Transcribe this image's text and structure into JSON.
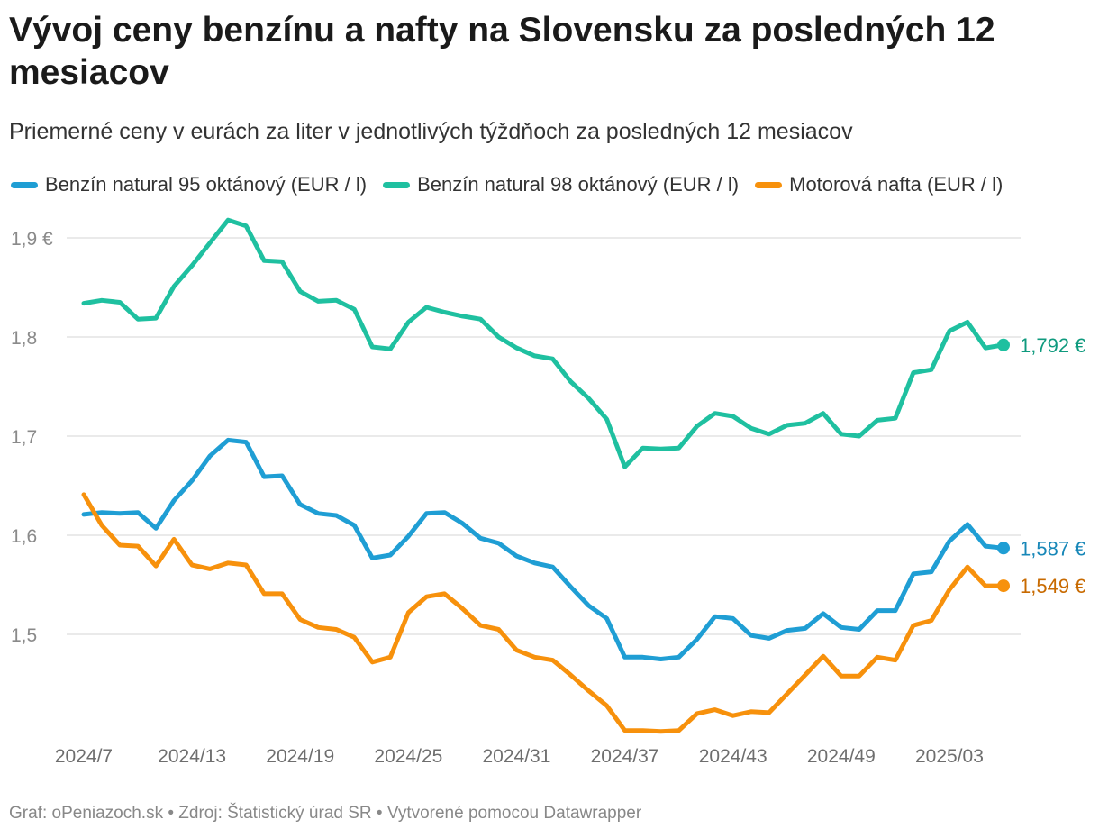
{
  "header": {
    "title": "Vývoj ceny benzínu a nafty na Slovensku za posledných 12 mesiacov",
    "subtitle": "Priemerné ceny v eurách za liter v jednotlivých týždňoch za posledných 12 mesiacov"
  },
  "legend": {
    "s0": "Benzín natural 95 oktánový (EUR / l)",
    "s1": "Benzín natural 98 oktánový (EUR / l)",
    "s2": "Motorová nafta (EUR / l)"
  },
  "footer": {
    "text": "Graf: oPeniazoch.sk • Zdroj: Štatistický úrad SR • Vytvorené pomocou Datawrapper"
  },
  "chart_data": {
    "type": "line",
    "title": "Vývoj ceny benzínu a nafty na Slovensku za posledných 12 mesiacov",
    "subtitle": "Priemerné ceny v eurách za liter v jednotlivých týždňoch za posledných 12 mesiacov",
    "x_tick_labels": [
      "2024/7",
      "2024/13",
      "2024/19",
      "2024/25",
      "2024/31",
      "2024/37",
      "2024/43",
      "2024/49",
      "2025/03"
    ],
    "y_ticks": [
      1.5,
      1.6,
      1.7,
      1.8,
      1.9
    ],
    "y_tick_labels": [
      "1,5",
      "1,6",
      "1,7",
      "1,8",
      "1,9 €"
    ],
    "ylim": [
      1.4,
      1.92
    ],
    "grid": true,
    "legend_position": "top",
    "series": [
      {
        "name": "Benzín natural 95 oktánový (EUR / l)",
        "color": "#1f9ed4",
        "label_color": "#1787b8",
        "end_label": "1,587 €",
        "values": [
          1.621,
          1.623,
          1.622,
          1.623,
          1.607,
          1.635,
          1.655,
          1.68,
          1.696,
          1.694,
          1.659,
          1.66,
          1.631,
          1.622,
          1.62,
          1.61,
          1.577,
          1.58,
          1.599,
          1.622,
          1.623,
          1.612,
          1.597,
          1.592,
          1.579,
          1.572,
          1.568,
          1.548,
          1.529,
          1.516,
          1.477,
          1.477,
          1.475,
          1.477,
          1.495,
          1.518,
          1.516,
          1.499,
          1.496,
          1.504,
          1.506,
          1.521,
          1.507,
          1.505,
          1.524,
          1.524,
          1.561,
          1.563,
          1.594,
          1.611,
          1.589,
          1.587
        ]
      },
      {
        "name": "Benzín natural 98 oktánový (EUR / l)",
        "color": "#1fc0a0",
        "label_color": "#0f9a7e",
        "end_label": "1,792 €",
        "values": [
          1.834,
          1.837,
          1.835,
          1.818,
          1.819,
          1.851,
          1.872,
          1.895,
          1.918,
          1.912,
          1.877,
          1.876,
          1.846,
          1.836,
          1.837,
          1.828,
          1.79,
          1.788,
          1.815,
          1.83,
          1.825,
          1.821,
          1.818,
          1.8,
          1.789,
          1.781,
          1.778,
          1.755,
          1.738,
          1.717,
          1.669,
          1.688,
          1.687,
          1.688,
          1.71,
          1.723,
          1.72,
          1.708,
          1.702,
          1.711,
          1.713,
          1.723,
          1.702,
          1.7,
          1.716,
          1.718,
          1.764,
          1.767,
          1.806,
          1.815,
          1.789,
          1.792
        ]
      },
      {
        "name": "Motorová nafta (EUR / l)",
        "color": "#f7910c",
        "label_color": "#c86a00",
        "end_label": "1,549 €",
        "values": [
          1.641,
          1.61,
          1.59,
          1.589,
          1.569,
          1.596,
          1.57,
          1.566,
          1.572,
          1.57,
          1.541,
          1.541,
          1.515,
          1.507,
          1.505,
          1.497,
          1.472,
          1.477,
          1.522,
          1.538,
          1.541,
          1.526,
          1.509,
          1.505,
          1.484,
          1.477,
          1.474,
          1.459,
          1.443,
          1.428,
          1.403,
          1.403,
          1.402,
          1.403,
          1.42,
          1.424,
          1.418,
          1.422,
          1.421,
          1.44,
          1.459,
          1.478,
          1.458,
          1.458,
          1.477,
          1.474,
          1.509,
          1.514,
          1.545,
          1.568,
          1.549,
          1.549
        ]
      }
    ]
  }
}
